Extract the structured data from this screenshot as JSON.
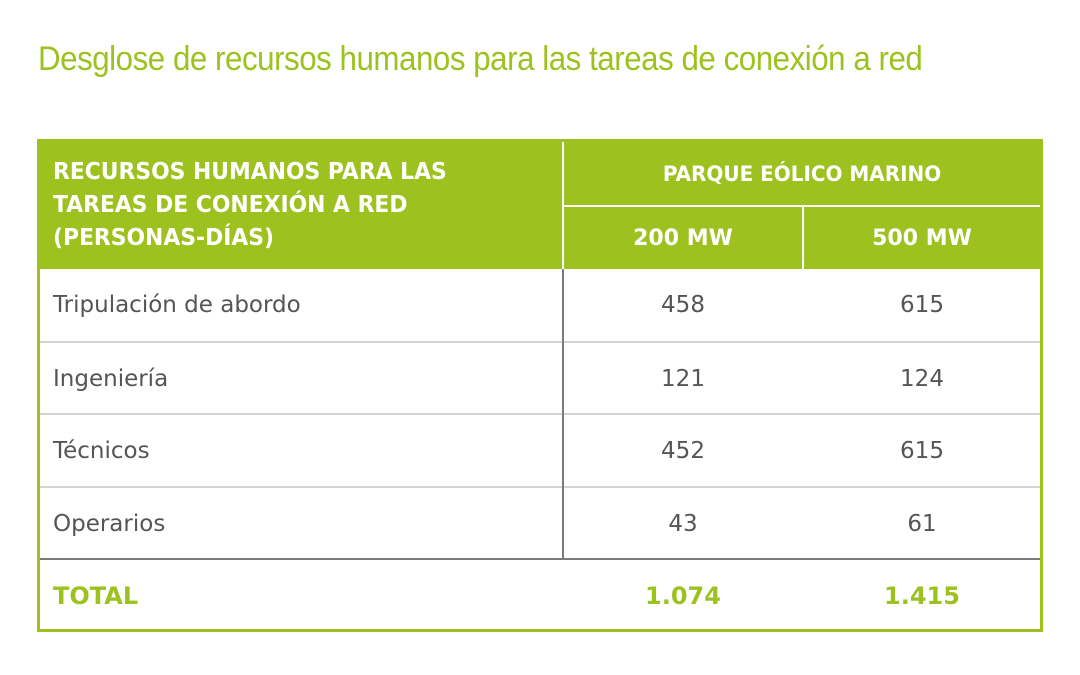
{
  "title": "Desglose de recursos humanos para las tareas de conexión a red",
  "table": {
    "header_main": "RECURSOS HUMANOS PARA LAS TAREAS DE CONEXIÓN A RED (PERSONAS-DÍAS)",
    "header_group": "PARQUE EÓLICO MARINO",
    "columns": [
      "200 MW",
      "500 MW"
    ],
    "rows": [
      {
        "label": "Tripulación de abordo",
        "values": [
          "458",
          "615"
        ]
      },
      {
        "label": "Ingeniería",
        "values": [
          "121",
          "124"
        ]
      },
      {
        "label": "Técnicos",
        "values": [
          "452",
          "615"
        ]
      },
      {
        "label": "Operarios",
        "values": [
          "43",
          "61"
        ]
      }
    ],
    "total": {
      "label": "TOTAL",
      "values": [
        "1.074",
        "1.415"
      ]
    }
  },
  "colors": {
    "accent": "#9dc21f",
    "text": "#555555",
    "row_divider": "#d4d4d4",
    "column_divider": "#7a7a7a"
  }
}
